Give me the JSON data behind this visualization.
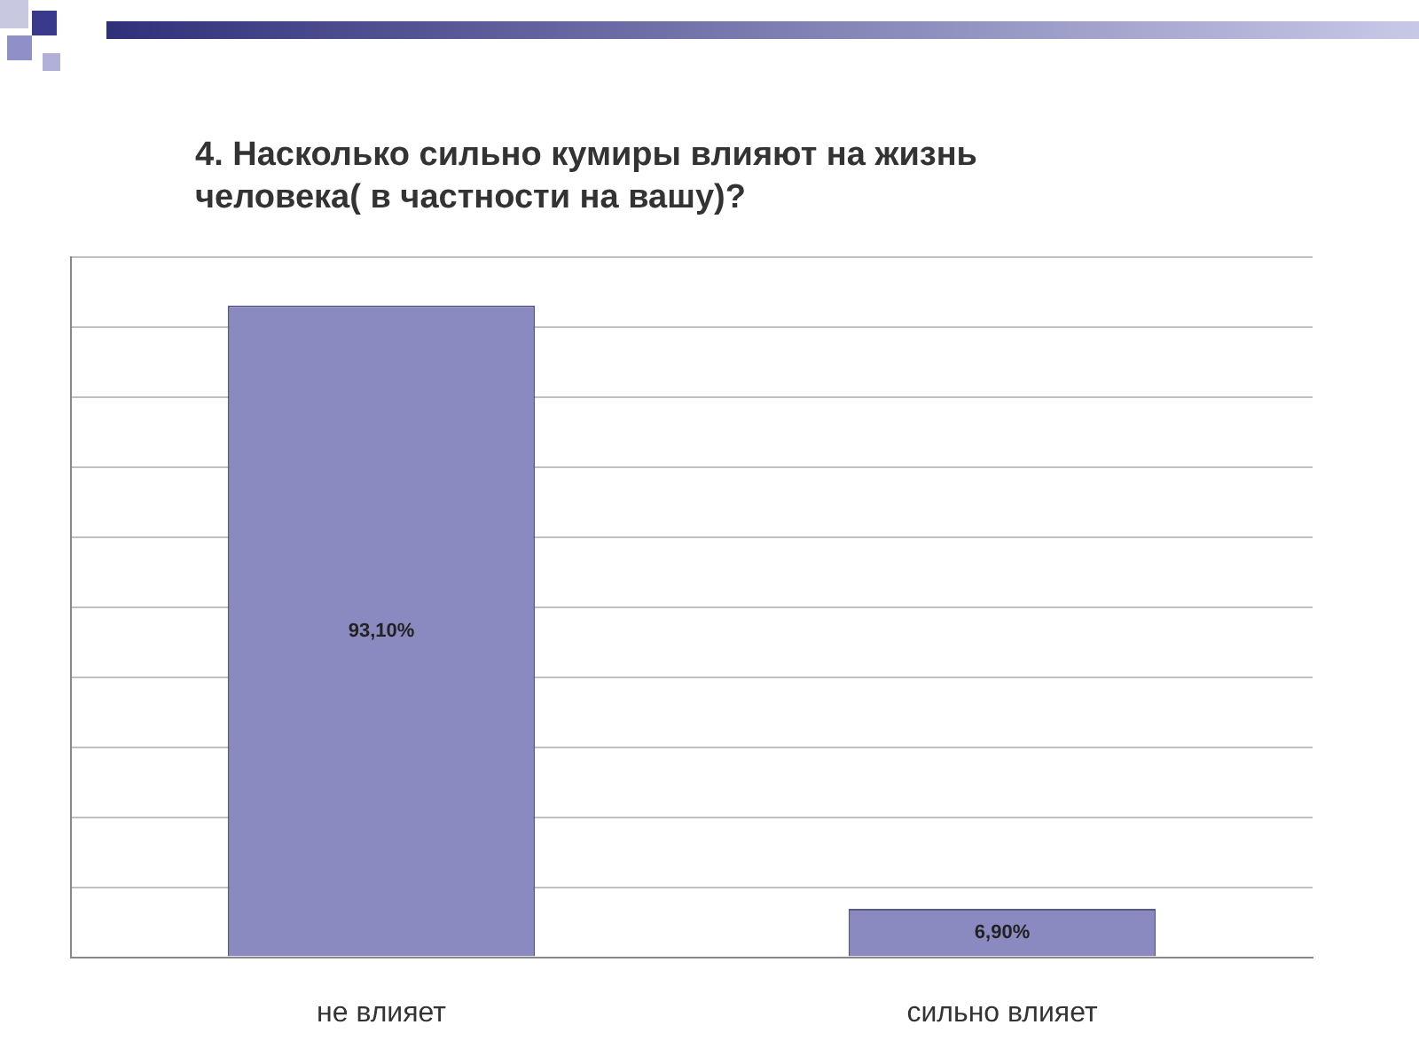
{
  "chart_data": {
    "type": "bar",
    "title": "4. Насколько сильно кумиры влияют на жизнь\nчеловека( в частности на вашу)?",
    "categories": [
      "не влияет",
      "сильно влияет"
    ],
    "values": [
      93.1,
      6.9
    ],
    "value_labels": [
      "93,10%",
      "6,90%"
    ],
    "color": "#8a8ac0",
    "ylim": [
      0,
      100
    ],
    "yticks": [
      {
        "value": 0,
        "label": null
      },
      {
        "value": 10,
        "label": null
      },
      {
        "value": 20,
        "label": null
      },
      {
        "value": 30,
        "label": null
      },
      {
        "value": 40,
        "label": null
      },
      {
        "value": 50,
        "label": null
      },
      {
        "value": 60,
        "label": null
      },
      {
        "value": 70,
        "label": null
      },
      {
        "value": 80,
        "label": null
      },
      {
        "value": 90,
        "label": null
      },
      {
        "value": 100,
        "label": null
      }
    ],
    "tick_labels": "x",
    "grid": "y",
    "legend": false
  }
}
